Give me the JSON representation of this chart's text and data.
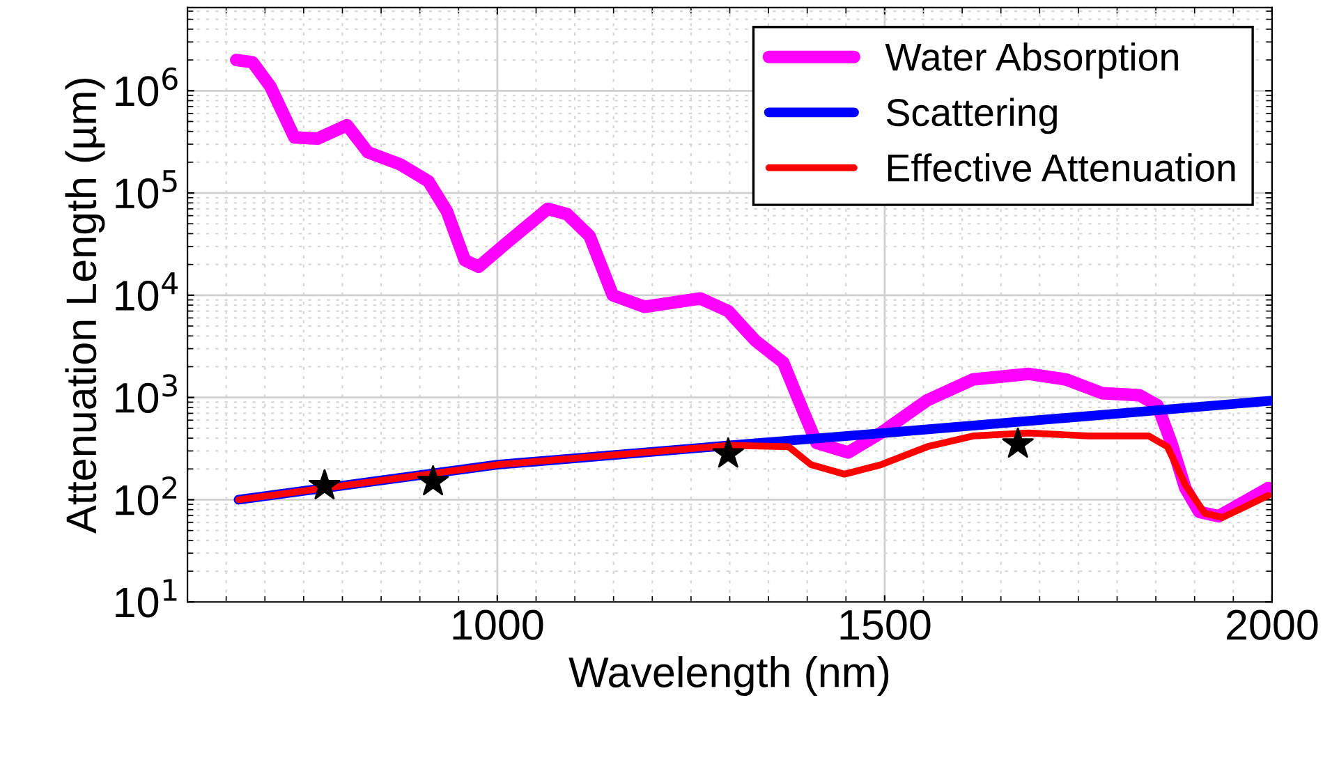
{
  "chart_data": {
    "type": "line",
    "xlabel": "Wavelength (nm)",
    "ylabel": "Attenuation Length (µm)",
    "xlim": [
      600,
      2000
    ],
    "ylim": [
      10,
      6500000
    ],
    "log": "y",
    "grid": true,
    "legend": "top right",
    "xticks": [
      1000,
      1500,
      2000
    ],
    "yticks": [
      {
        "value": 10,
        "label": "10$^{1}$"
      },
      {
        "value": 100,
        "label": "10$^{2}$"
      },
      {
        "value": 1000,
        "label": "10$^{3}$"
      },
      {
        "value": 10000,
        "label": "10$^{4}$"
      },
      {
        "value": 100000,
        "label": "10$^{5}$"
      },
      {
        "value": 1000000,
        "label": "10$^{6}$"
      }
    ],
    "series": [
      {
        "name": "Water Absorption",
        "color": "#ff00ff",
        "x": [
          663,
          684,
          707,
          738,
          768,
          806,
          833,
          875,
          911,
          935,
          958,
          976,
          1011,
          1065,
          1090,
          1119,
          1149,
          1190,
          1262,
          1298,
          1333,
          1369,
          1394,
          1412,
          1453,
          1495,
          1555,
          1614,
          1686,
          1734,
          1781,
          1829,
          1852,
          1870,
          1888,
          1906,
          1931,
          1995
        ],
        "values": [
          2000000,
          1900000,
          1100000,
          350000,
          340000,
          460000,
          250000,
          190000,
          130000,
          66000,
          22000,
          19000,
          32000,
          70000,
          62000,
          38000,
          10000,
          7700,
          9300,
          7000,
          3600,
          2200,
          760,
          360,
          290,
          450,
          940,
          1500,
          1700,
          1500,
          1100,
          1050,
          840,
          360,
          130,
          76,
          69,
          130
        ]
      },
      {
        "name": "Scattering",
        "color": "#0000ff",
        "x": [
          666,
          1000,
          1300,
          1500,
          2000
        ],
        "values": [
          100,
          220,
          340,
          450,
          930
        ]
      },
      {
        "name": "Effective Attenuation",
        "color": "#ff0000",
        "x": [
          666,
          1000,
          1300,
          1376,
          1405,
          1448,
          1495,
          1555,
          1614,
          1686,
          1763,
          1841,
          1865,
          1888,
          1913,
          1936,
          1995
        ],
        "values": [
          100,
          220,
          340,
          330,
          220,
          178,
          220,
          330,
          420,
          450,
          420,
          420,
          330,
          140,
          74,
          67,
          110
        ]
      },
      {
        "type": "scatter",
        "marker": "star",
        "color": "#000000",
        "x": [
          777,
          917,
          1298,
          1672
        ],
        "values": [
          137,
          150,
          280,
          350
        ]
      }
    ]
  }
}
